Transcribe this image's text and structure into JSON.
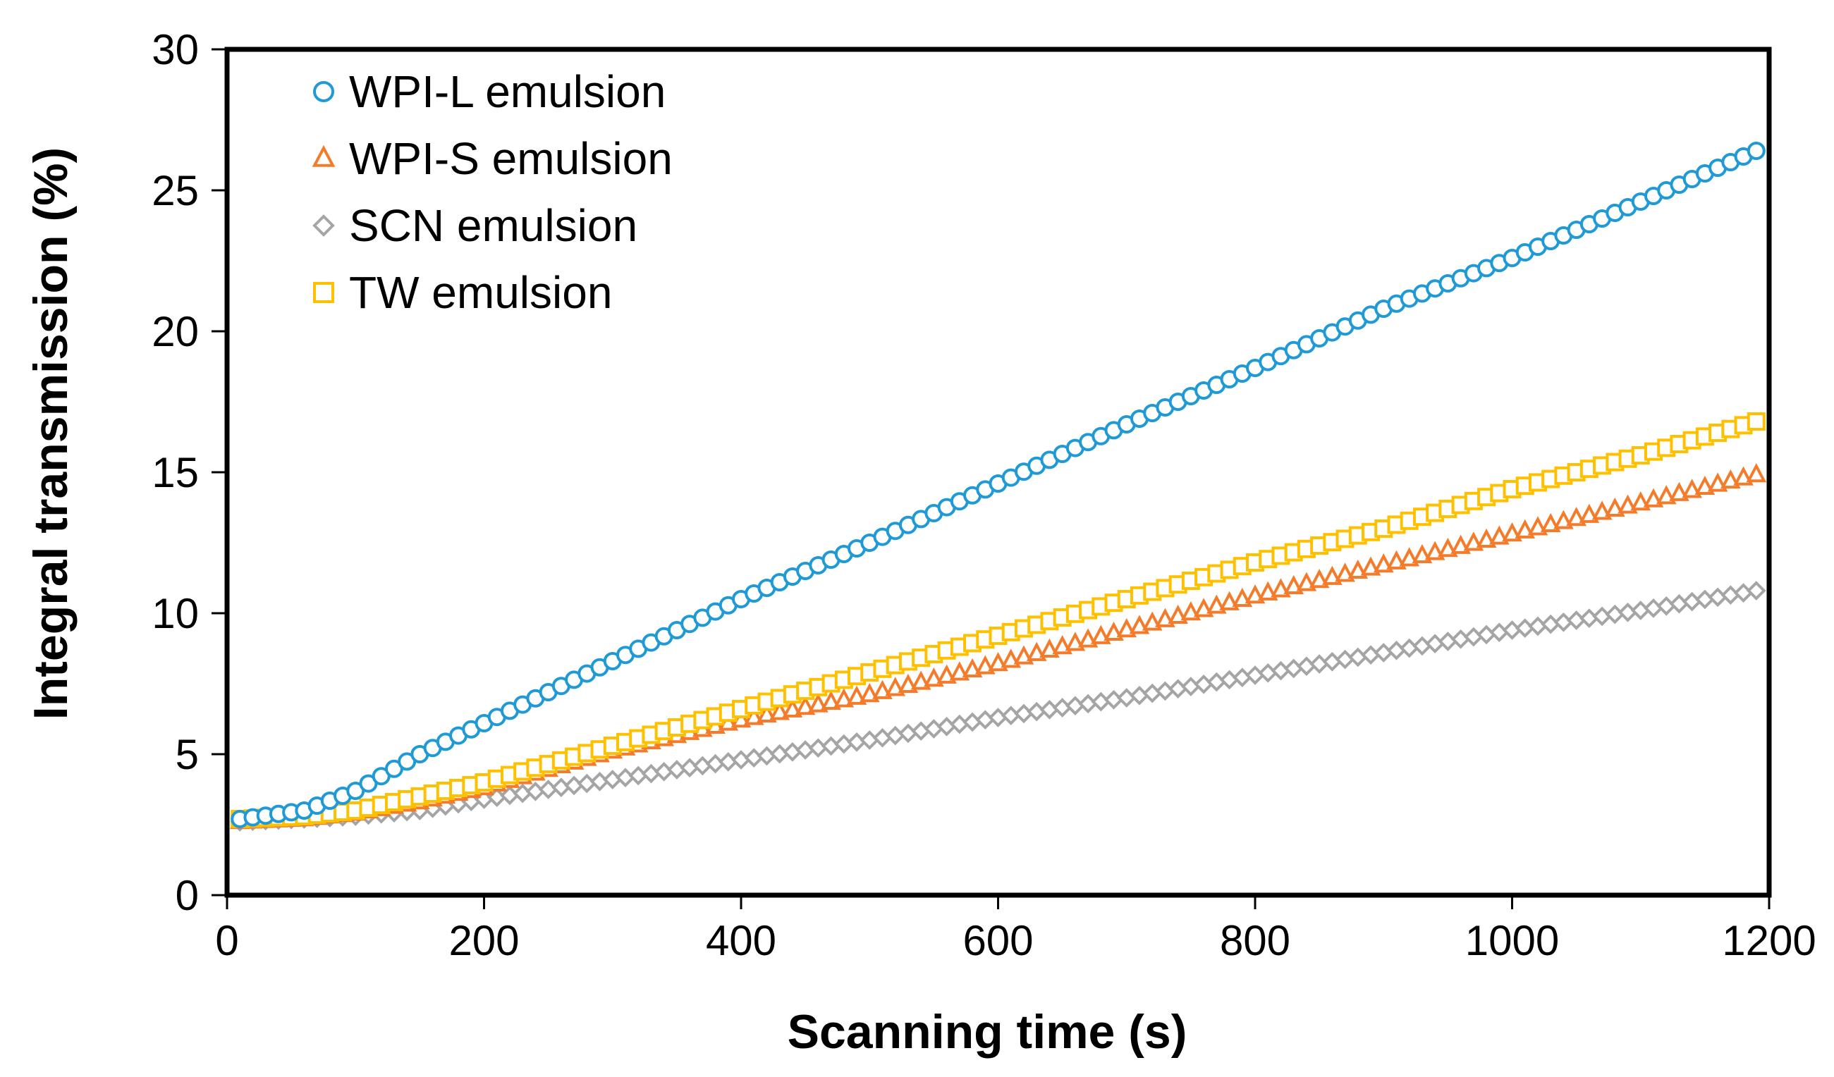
{
  "chart_data": {
    "type": "scatter",
    "title": "",
    "xlabel": "Scanning time (s)",
    "ylabel": "Integral transmission (%)",
    "xlim": [
      0,
      1200
    ],
    "ylim": [
      0,
      30
    ],
    "xticks": [
      0,
      200,
      400,
      600,
      800,
      1000,
      1200
    ],
    "yticks": [
      0,
      5,
      10,
      15,
      20,
      25,
      30
    ],
    "grid": false,
    "legend_position": "top-left",
    "series": [
      {
        "name": "WPI-L emulsion",
        "marker": "circle",
        "color": "#1F9AD6",
        "points": [
          [
            10,
            2.7
          ],
          [
            60,
            3.0
          ],
          [
            100,
            3.7
          ],
          [
            150,
            5.0
          ],
          [
            200,
            6.1
          ],
          [
            300,
            8.3
          ],
          [
            400,
            10.5
          ],
          [
            500,
            12.5
          ],
          [
            600,
            14.6
          ],
          [
            700,
            16.7
          ],
          [
            800,
            18.7
          ],
          [
            900,
            20.8
          ],
          [
            1000,
            22.6
          ],
          [
            1100,
            24.6
          ],
          [
            1190,
            26.4
          ]
        ]
      },
      {
        "name": "WPI-S emulsion",
        "marker": "triangle",
        "color": "#F47B2A",
        "points": [
          [
            10,
            2.6
          ],
          [
            60,
            2.7
          ],
          [
            100,
            2.9
          ],
          [
            150,
            3.3
          ],
          [
            200,
            3.8
          ],
          [
            300,
            5.1
          ],
          [
            400,
            6.2
          ],
          [
            500,
            7.1
          ],
          [
            600,
            8.2
          ],
          [
            700,
            9.4
          ],
          [
            800,
            10.6
          ],
          [
            900,
            11.7
          ],
          [
            1000,
            12.8
          ],
          [
            1100,
            13.9
          ],
          [
            1190,
            14.9
          ]
        ]
      },
      {
        "name": "SCN emulsion",
        "marker": "diamond",
        "color": "#A5A5A5",
        "points": [
          [
            10,
            2.6
          ],
          [
            60,
            2.7
          ],
          [
            100,
            2.8
          ],
          [
            150,
            3.0
          ],
          [
            200,
            3.4
          ],
          [
            300,
            4.1
          ],
          [
            400,
            4.8
          ],
          [
            500,
            5.5
          ],
          [
            600,
            6.3
          ],
          [
            700,
            7.0
          ],
          [
            800,
            7.8
          ],
          [
            900,
            8.6
          ],
          [
            1000,
            9.4
          ],
          [
            1100,
            10.1
          ],
          [
            1190,
            10.8
          ]
        ]
      },
      {
        "name": "TW emulsion",
        "marker": "square",
        "color": "#FFC000",
        "points": [
          [
            10,
            2.7
          ],
          [
            60,
            2.8
          ],
          [
            100,
            3.0
          ],
          [
            150,
            3.5
          ],
          [
            200,
            4.0
          ],
          [
            300,
            5.3
          ],
          [
            400,
            6.6
          ],
          [
            500,
            7.9
          ],
          [
            600,
            9.2
          ],
          [
            700,
            10.5
          ],
          [
            800,
            11.8
          ],
          [
            900,
            13.0
          ],
          [
            1000,
            14.4
          ],
          [
            1100,
            15.6
          ],
          [
            1190,
            16.8
          ]
        ]
      }
    ]
  }
}
